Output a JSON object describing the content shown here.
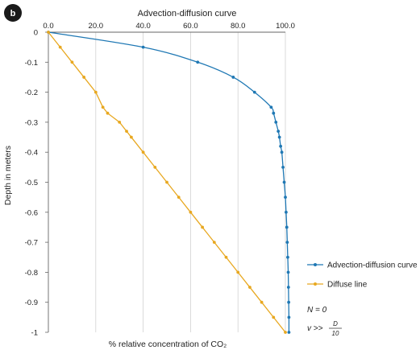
{
  "panel_label": "b",
  "chart_data": {
    "type": "line",
    "title": "Advection-diffusion curve",
    "xlabel": "% relative concentration of CO₂",
    "ylabel": "Depth in meters",
    "xlim": [
      0,
      100
    ],
    "ylim": [
      -1,
      0
    ],
    "x_ticks": [
      "0.0",
      "20.0",
      "40.0",
      "60.0",
      "80.0",
      "100.0"
    ],
    "y_ticks": [
      "0",
      "-0.1",
      "-0.2",
      "-0.3",
      "-0.4",
      "-0.5",
      "-0.6",
      "-0.7",
      "-0.8",
      "-0.9",
      "-1"
    ],
    "grid": "vertical",
    "legend_position": "right",
    "series": [
      {
        "name": "Advection-diffusion curve",
        "color": "#1f78b4",
        "x": [
          0,
          40,
          63,
          78,
          87,
          94,
          95,
          96,
          97,
          97.5,
          98,
          98.5,
          99,
          99.5,
          100,
          100.3,
          100.6,
          100.8,
          101,
          101.2,
          101.3,
          101.4,
          101.5,
          101.5
        ],
        "y": [
          0,
          -0.05,
          -0.1,
          -0.15,
          -0.2,
          -0.25,
          -0.27,
          -0.3,
          -0.33,
          -0.35,
          -0.38,
          -0.4,
          -0.45,
          -0.5,
          -0.55,
          -0.6,
          -0.65,
          -0.7,
          -0.75,
          -0.8,
          -0.85,
          -0.9,
          -0.95,
          -1
        ]
      },
      {
        "name": "Diffuse line",
        "color": "#e8a820",
        "x": [
          0,
          5,
          10,
          15,
          20,
          23,
          25,
          30,
          33,
          35,
          40,
          45,
          50,
          55,
          60,
          65,
          70,
          75,
          80,
          85,
          90,
          95,
          100
        ],
        "y": [
          0,
          -0.05,
          -0.1,
          -0.15,
          -0.2,
          -0.25,
          -0.27,
          -0.3,
          -0.33,
          -0.35,
          -0.4,
          -0.45,
          -0.5,
          -0.55,
          -0.6,
          -0.65,
          -0.7,
          -0.75,
          -0.8,
          -0.85,
          -0.9,
          -0.95,
          -1
        ]
      }
    ]
  },
  "notes": {
    "line1": "N = 0",
    "line2_prefix": "v >>",
    "frac_num": "D",
    "frac_den": "10"
  }
}
